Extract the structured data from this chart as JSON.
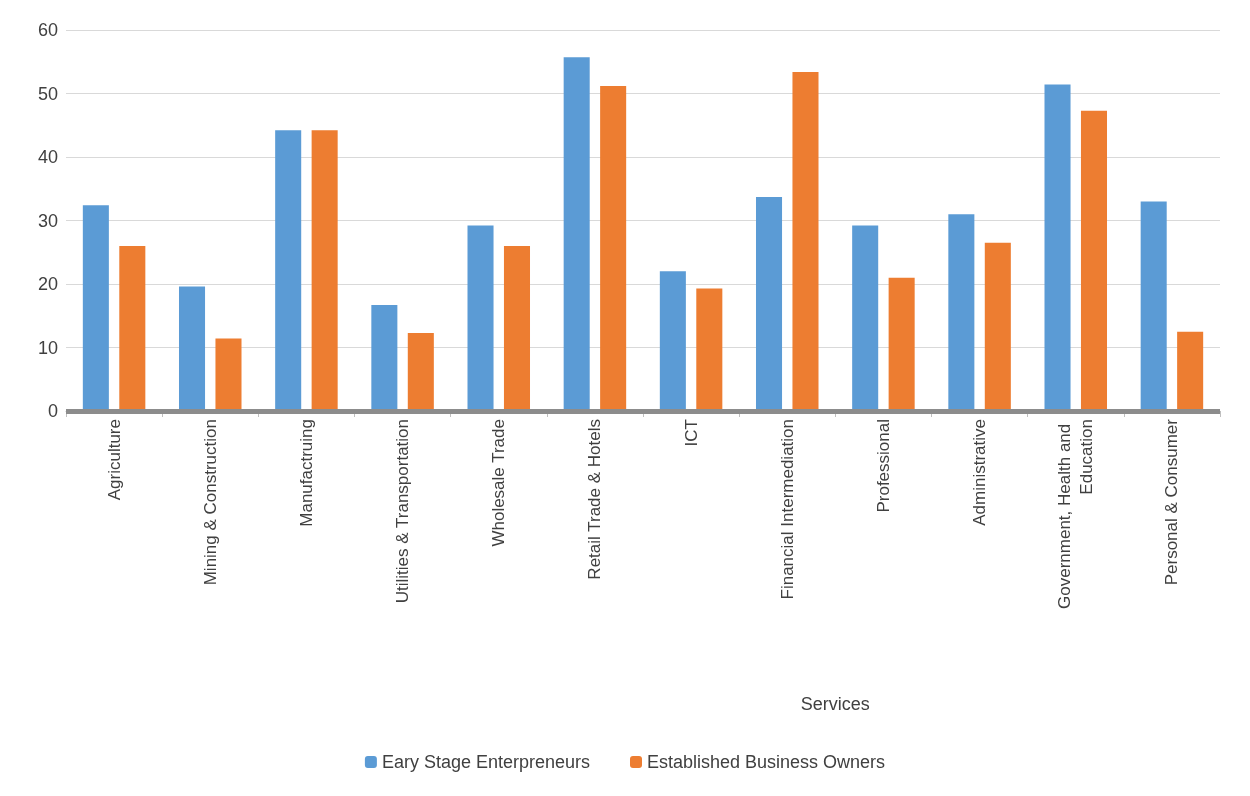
{
  "chart_data": {
    "type": "bar",
    "categories": [
      "Agriculture",
      "Mining & Construction",
      "Manufactruing",
      "Utilities & Transportation",
      "Wholesale Trade",
      "Retail Trade & Hotels",
      "ICT",
      "Financial Intermediation",
      "Professional",
      "Administrative",
      "Government, Health and Education",
      "Personal & Consumer"
    ],
    "series": [
      {
        "name": "Eary Stage Enterpreneurs",
        "color": "#5b9bd5",
        "values": [
          32.4,
          19.6,
          44.2,
          16.7,
          29.2,
          55.7,
          22.0,
          33.7,
          29.2,
          31.0,
          51.4,
          33.0
        ]
      },
      {
        "name": "Established Business Owners",
        "color": "#ed7d31",
        "values": [
          26.0,
          11.4,
          44.2,
          12.3,
          26.0,
          51.2,
          19.3,
          53.4,
          21.0,
          26.5,
          47.3,
          12.5
        ]
      }
    ],
    "ylim": [
      0,
      60
    ],
    "yticks": [
      0,
      10,
      20,
      30,
      40,
      50,
      60
    ],
    "grid": "y",
    "legend": "bottom",
    "ref_lines": [
      {
        "axis": "y",
        "value": 0,
        "color": "#8c8c8c"
      }
    ],
    "annotations": [
      "Services"
    ]
  }
}
